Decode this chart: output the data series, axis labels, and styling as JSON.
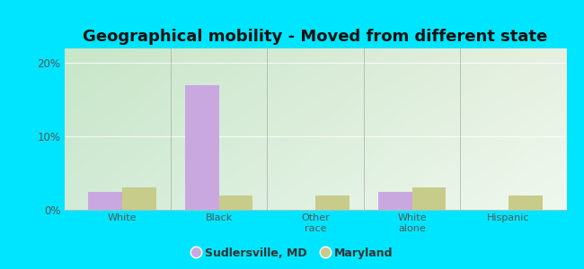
{
  "title": "Geographical mobility - Moved from different state",
  "categories": [
    "White",
    "Black",
    "Other\nrace",
    "White\nalone",
    "Hispanic"
  ],
  "sudlersville_values": [
    2.5,
    17.0,
    0.0,
    2.5,
    0.0
  ],
  "maryland_values": [
    3.0,
    2.0,
    2.0,
    3.0,
    2.0
  ],
  "sudlersville_color": "#c9a8e0",
  "maryland_color": "#c8cc8a",
  "bar_width": 0.35,
  "ylim": [
    0,
    22
  ],
  "yticks": [
    0,
    10,
    20
  ],
  "ytick_labels": [
    "0%",
    "10%",
    "20%"
  ],
  "legend_labels": [
    "Sudlersville, MD",
    "Maryland"
  ],
  "outer_bg": "#00e5ff",
  "title_fontsize": 13,
  "grad_topleft": [
    200,
    230,
    200
  ],
  "grad_topright": [
    230,
    240,
    225
  ],
  "grad_bottomleft": [
    210,
    235,
    215
  ],
  "grad_bottomright": [
    240,
    248,
    238
  ]
}
